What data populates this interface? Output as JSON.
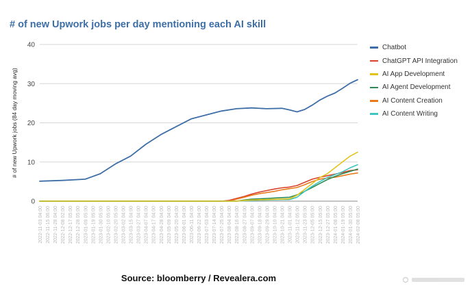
{
  "chart_data": {
    "type": "line",
    "title": "# of new Upwork jobs per day mentioning each AI skill",
    "ylabel": "# of new Upwork jobs (84 day moving avg)",
    "xlabel": "",
    "ylim": [
      0,
      40
    ],
    "yticks": [
      0,
      10,
      20,
      30,
      40
    ],
    "grid": "horizontal",
    "legend_position": "right",
    "categories": [
      "2022-11-03 04:00",
      "2022-11-15 06:00",
      "2022-11-28 04:00",
      "2022-12-08 02:00",
      "2022-12-17 05:00",
      "2022-12-28 05:00",
      "2023-01-09 05:00",
      "2023-01-19 05:00",
      "2023-01-30 05:00",
      "2023-02-10 05:00",
      "2023-02-20 05:00",
      "2023-03-02 04:00",
      "2023-03-15 04:00",
      "2023-03-27 04:00",
      "2023-04-07 04:00",
      "2023-04-17 04:00",
      "2023-04-28 04:00",
      "2023-05-09 04:00",
      "2023-05-20 04:00",
      "2023-06-01 04:00",
      "2023-06-11 04:00",
      "2023-06-22 04:00",
      "2023-07-03 04:00",
      "2023-07-14 04:00",
      "2023-07-25 04:00",
      "2023-08-04 04:00",
      "2023-08-16 04:00",
      "2023-08-27 04:00",
      "2023-09-07 04:00",
      "2023-09-18 04:00",
      "2023-09-29 04:00",
      "2023-10-10 04:00",
      "2023-10-21 04:00",
      "2023-11-01 04:00",
      "2023-11-12 05:00",
      "2023-11-23 05:00",
      "2023-12-05 05:00",
      "2023-12-15 05:00",
      "2023-12-27 05:00",
      "2024-01-08 05:00",
      "2024-01-19 05:00",
      "2024-01-30 05:00",
      "2024-02-08 05:00"
    ],
    "series": [
      {
        "name": "Chatbot",
        "color": "#3d6ea6",
        "points": [
          [
            0,
            5.1
          ],
          [
            3,
            5.3
          ],
          [
            6,
            5.6
          ],
          [
            8,
            7
          ],
          [
            10,
            9.5
          ],
          [
            12,
            11.5
          ],
          [
            14,
            14.5
          ],
          [
            16,
            17
          ],
          [
            18,
            19
          ],
          [
            20,
            21
          ],
          [
            22,
            22
          ],
          [
            24,
            23
          ],
          [
            26,
            23.6
          ],
          [
            28,
            23.8
          ],
          [
            30,
            23.6
          ],
          [
            32,
            23.7
          ],
          [
            33,
            23.3
          ],
          [
            34,
            22.8
          ],
          [
            35,
            23.4
          ],
          [
            36,
            24.5
          ],
          [
            37,
            25.8
          ],
          [
            38,
            26.8
          ],
          [
            39,
            27.6
          ],
          [
            40,
            28.8
          ],
          [
            41,
            30.1
          ],
          [
            42,
            31
          ]
        ]
      },
      {
        "name": "ChatGPT API Integration",
        "color": "#d9412b",
        "points": [
          [
            0,
            0
          ],
          [
            24,
            0
          ],
          [
            25,
            0.2
          ],
          [
            26,
            0.7
          ],
          [
            27,
            1.2
          ],
          [
            28,
            1.8
          ],
          [
            29,
            2.3
          ],
          [
            30,
            2.7
          ],
          [
            31,
            3.1
          ],
          [
            32,
            3.4
          ],
          [
            33,
            3.6
          ],
          [
            34,
            4.0
          ],
          [
            35,
            4.8
          ],
          [
            36,
            5.6
          ],
          [
            37,
            6.1
          ],
          [
            38,
            6.5
          ],
          [
            39,
            6.9
          ],
          [
            40,
            7.3
          ],
          [
            41,
            7.8
          ],
          [
            42,
            8.0
          ]
        ]
      },
      {
        "name": "AI App Development",
        "color": "#e3c31b",
        "points": [
          [
            0,
            0
          ],
          [
            26,
            0
          ],
          [
            27,
            0.2
          ],
          [
            28,
            0.3
          ],
          [
            30,
            0.4
          ],
          [
            32,
            0.5
          ],
          [
            33,
            0.6
          ],
          [
            34,
            1.5
          ],
          [
            35,
            3.0
          ],
          [
            36,
            4.5
          ],
          [
            37,
            6.0
          ],
          [
            38,
            7.0
          ],
          [
            39,
            8.5
          ],
          [
            40,
            10.0
          ],
          [
            41,
            11.5
          ],
          [
            42,
            12.5
          ]
        ]
      },
      {
        "name": "AI Agent Development",
        "color": "#2e8b57",
        "points": [
          [
            0,
            0
          ],
          [
            26,
            0
          ],
          [
            27,
            0.3
          ],
          [
            28,
            0.5
          ],
          [
            30,
            0.7
          ],
          [
            32,
            0.9
          ],
          [
            33,
            1.0
          ],
          [
            34,
            1.6
          ],
          [
            35,
            2.5
          ],
          [
            36,
            3.5
          ],
          [
            37,
            4.5
          ],
          [
            38,
            5.5
          ],
          [
            39,
            6.3
          ],
          [
            40,
            7.0
          ],
          [
            41,
            7.6
          ],
          [
            42,
            8.2
          ]
        ]
      },
      {
        "name": "AI Content Creation",
        "color": "#e87a1c",
        "points": [
          [
            0,
            0
          ],
          [
            25,
            0
          ],
          [
            26,
            0.5
          ],
          [
            27,
            1.0
          ],
          [
            28,
            1.5
          ],
          [
            29,
            1.9
          ],
          [
            30,
            2.2
          ],
          [
            31,
            2.5
          ],
          [
            32,
            2.9
          ],
          [
            33,
            3.2
          ],
          [
            34,
            3.5
          ],
          [
            35,
            4.2
          ],
          [
            36,
            5.0
          ],
          [
            37,
            5.6
          ],
          [
            38,
            5.9
          ],
          [
            39,
            6.1
          ],
          [
            40,
            6.5
          ],
          [
            41,
            6.9
          ],
          [
            42,
            7.2
          ]
        ]
      },
      {
        "name": "AI Content Writing",
        "color": "#3fc5c2",
        "points": [
          [
            0,
            0
          ],
          [
            26,
            0
          ],
          [
            28,
            0.2
          ],
          [
            30,
            0.3
          ],
          [
            32,
            0.4
          ],
          [
            33,
            0.4
          ],
          [
            34,
            1.0
          ],
          [
            35,
            2.5
          ],
          [
            36,
            3.8
          ],
          [
            37,
            5.0
          ],
          [
            38,
            6.0
          ],
          [
            39,
            6.8
          ],
          [
            40,
            7.5
          ],
          [
            41,
            8.5
          ],
          [
            42,
            9.3
          ]
        ]
      }
    ]
  },
  "title": "# of new Upwork jobs per day mentioning each AI skill",
  "source": "Source: bloomberry / Revealera.com",
  "legend": {
    "items": [
      {
        "label": "Chatbot",
        "color": "#3d6ea6"
      },
      {
        "label": "ChatGPT API Integration",
        "color": "#d9412b"
      },
      {
        "label": "AI App Development",
        "color": "#e3c31b"
      },
      {
        "label": "AI Agent Development",
        "color": "#2e8b57"
      },
      {
        "label": "AI Content Creation",
        "color": "#e87a1c"
      },
      {
        "label": "AI Content Writing",
        "color": "#3fc5c2"
      }
    ]
  }
}
